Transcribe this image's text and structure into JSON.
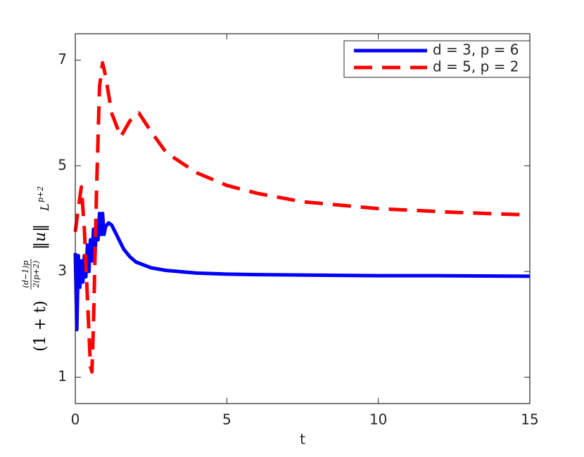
{
  "chart_data": {
    "type": "line",
    "x_label": "t",
    "y_label_parts": [
      "(1 + t)",
      "(d−1)p",
      "2(p+2)",
      "‖u‖",
      "L",
      "p+2"
    ],
    "xlim": [
      0,
      15
    ],
    "xticks": [
      0,
      5,
      10,
      15
    ],
    "ylim": [
      0.5,
      7.5
    ],
    "yticks": [
      1,
      3,
      5,
      7
    ],
    "legend": "upper right",
    "series": [
      {
        "name": "d = 3, p = 6",
        "color": "#0000ff",
        "style": "solid",
        "x": [
          0,
          0.05,
          0.1,
          0.15,
          0.2,
          0.25,
          0.3,
          0.35,
          0.4,
          0.45,
          0.5,
          0.55,
          0.6,
          0.65,
          0.7,
          0.75,
          0.8,
          0.85,
          0.9,
          0.95,
          1.0,
          1.1,
          1.2,
          1.4,
          1.6,
          1.8,
          2.0,
          2.5,
          3,
          4,
          5,
          6,
          8,
          10,
          12,
          15
        ],
        "values": [
          3.35,
          1.9,
          3.3,
          2.7,
          3.2,
          2.8,
          3.3,
          2.9,
          3.5,
          3.0,
          3.6,
          3.2,
          3.8,
          3.3,
          3.9,
          3.6,
          4.1,
          3.7,
          4.1,
          3.7,
          3.85,
          3.92,
          3.88,
          3.65,
          3.42,
          3.28,
          3.18,
          3.07,
          3.02,
          2.97,
          2.95,
          2.94,
          2.93,
          2.92,
          2.92,
          2.91
        ]
      },
      {
        "name": "d = 5, p = 2",
        "color": "#ff0000",
        "style": "dashed",
        "x": [
          0,
          0.1,
          0.2,
          0.3,
          0.4,
          0.5,
          0.55,
          0.6,
          0.7,
          0.8,
          0.9,
          1.0,
          1.2,
          1.5,
          1.8,
          2.1,
          2.5,
          3,
          4,
          5,
          6,
          7.5,
          10,
          12.5,
          15
        ],
        "values": [
          3.75,
          4.2,
          4.6,
          3.8,
          2.5,
          1.2,
          1.1,
          2.0,
          4.5,
          6.5,
          6.95,
          6.7,
          6.0,
          5.55,
          5.85,
          6.0,
          5.65,
          5.25,
          4.87,
          4.63,
          4.48,
          4.32,
          4.19,
          4.12,
          4.07
        ]
      }
    ]
  }
}
